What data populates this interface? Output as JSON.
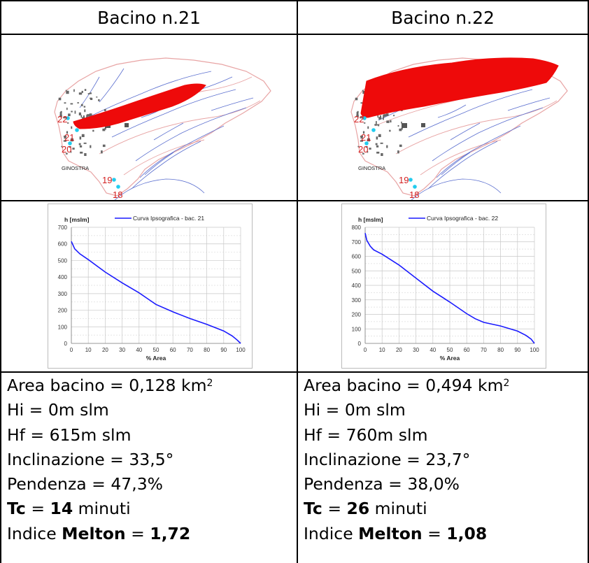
{
  "colors": {
    "basin": "#ee0a0a",
    "stream": "#5b6fcf",
    "boundary": "#e8a4a4",
    "marker": "#22ccee",
    "label": "#d42020",
    "curve": "#1a1aff",
    "grid": "#c8c8c8"
  },
  "columns": [
    {
      "title": "Bacino n.21",
      "map_labels": {
        "l22": "22",
        "l21": "21",
        "l20": "20",
        "l19": "19",
        "l18": "18",
        "town": "GINOSTRA"
      },
      "chart_data": {
        "type": "line",
        "ylabel": "h [mslm]",
        "xlabel": "% Area",
        "legend": "Curva Ipsografica - bac. 21",
        "xlim": [
          0,
          100
        ],
        "ylim": [
          0,
          700
        ],
        "xticks": [
          0,
          10,
          20,
          30,
          40,
          50,
          60,
          70,
          80,
          90,
          100
        ],
        "yticks": [
          0,
          100,
          200,
          300,
          400,
          500,
          600,
          700
        ],
        "x": [
          0,
          2,
          5,
          10,
          20,
          30,
          40,
          45,
          50,
          60,
          70,
          80,
          90,
          95,
          98,
          100
        ],
        "y": [
          615,
          570,
          540,
          505,
          430,
          365,
          305,
          270,
          235,
          190,
          150,
          115,
          75,
          45,
          20,
          0
        ]
      },
      "stats": {
        "area_label": "Area bacino = ",
        "area_value": "0,128 km",
        "area_unit_exp": "2",
        "hi": "Hi = 0m slm",
        "hf": "Hf = 615m slm",
        "inclinazione": "Inclinazione = 33,5°",
        "pendenza": "Pendenza = 47,3%",
        "tc_label": "Tc",
        "tc_eq": " = ",
        "tc_value": "14",
        "tc_unit": " minuti",
        "melton_prefix": "Indice ",
        "melton_label": "Melton",
        "melton_eq": " = ",
        "melton_value": "1,72"
      }
    },
    {
      "title": "Bacino n.22",
      "map_labels": {
        "l22": "22",
        "l21": "21",
        "l20": "20",
        "l19": "19",
        "l18": "18",
        "town": "GINOSTRA"
      },
      "chart_data": {
        "type": "line",
        "ylabel": "h [mslm]",
        "xlabel": "% Area",
        "legend": "Curva Ipsografica - bac. 22",
        "xlim": [
          0,
          100
        ],
        "ylim": [
          0,
          800
        ],
        "xticks": [
          0,
          10,
          20,
          30,
          40,
          50,
          60,
          70,
          80,
          90,
          100
        ],
        "yticks": [
          0,
          100,
          200,
          300,
          400,
          500,
          600,
          700,
          800
        ],
        "x": [
          0,
          1,
          3,
          5,
          10,
          20,
          30,
          40,
          50,
          60,
          65,
          70,
          80,
          90,
          95,
          98,
          100
        ],
        "y": [
          760,
          710,
          670,
          645,
          615,
          540,
          450,
          360,
          285,
          205,
          170,
          145,
          120,
          85,
          55,
          30,
          0
        ]
      },
      "stats": {
        "area_label": "Area bacino = ",
        "area_value": "0,494 km",
        "area_unit_exp": "2",
        "hi": "Hi = 0m slm",
        "hf": "Hf = 760m slm",
        "inclinazione": "Inclinazione = 23,7°",
        "pendenza": "Pendenza = 38,0%",
        "tc_label": "Tc",
        "tc_eq": " = ",
        "tc_value": "26",
        "tc_unit": " minuti",
        "melton_prefix": "Indice ",
        "melton_label": "Melton",
        "melton_eq": " = ",
        "melton_value": "1,08"
      }
    }
  ]
}
